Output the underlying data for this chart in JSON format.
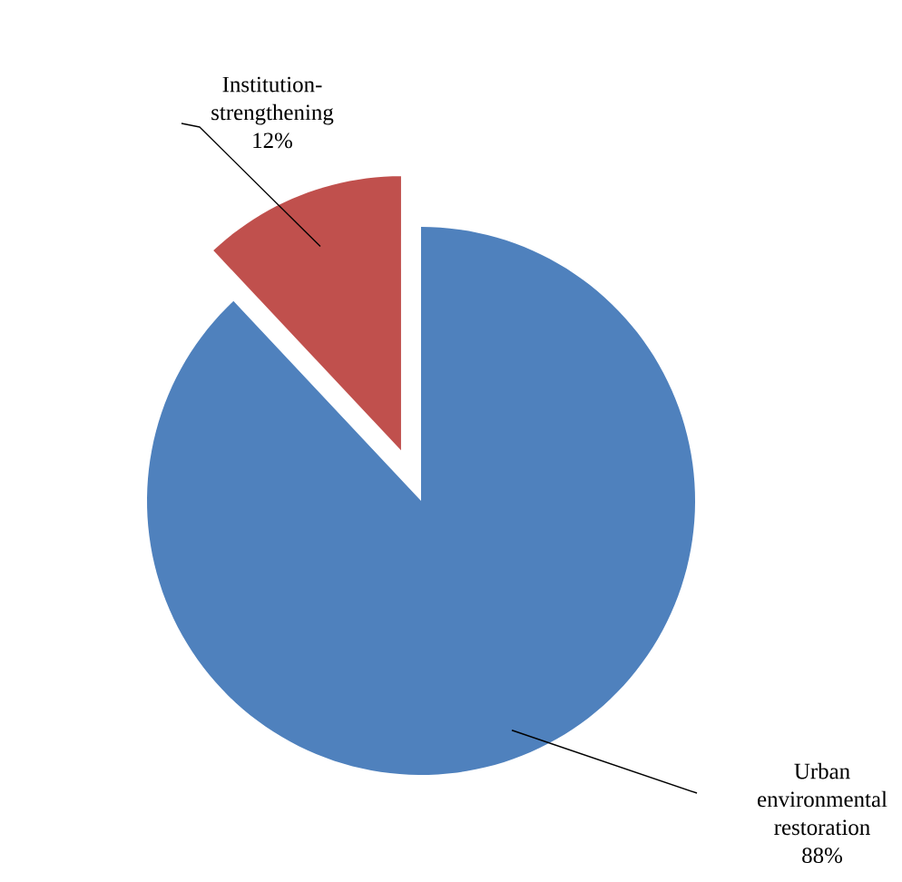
{
  "chart_data": {
    "type": "pie",
    "categories": [
      "Urban environmental restoration",
      "Institution-strengthening"
    ],
    "values": [
      88,
      12
    ],
    "value_labels": [
      "88%",
      "12%"
    ],
    "colors": [
      "#4f81bd",
      "#c0504d"
    ]
  }
}
